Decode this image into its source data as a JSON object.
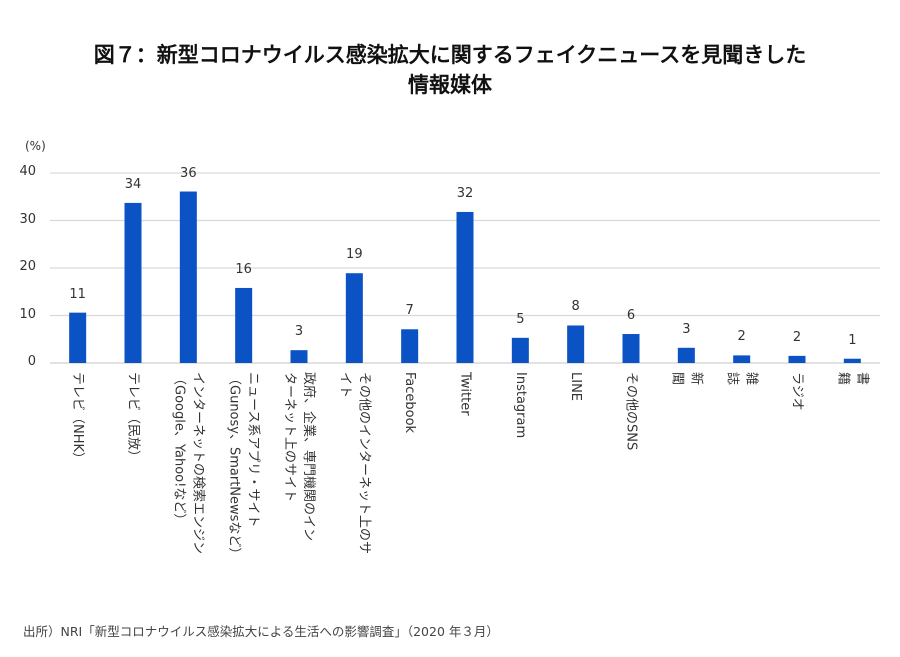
{
  "title": {
    "line1": "図７：新型コロナウイルス感染拡大に関するフェイクニュースを見聞きした",
    "line2": "情報媒体"
  },
  "source": "出所）NRI「新型コロナウイルス感染拡大による生活への影響調査」（2020 年３月）",
  "colors": {
    "bar": "#0b52c5",
    "grid": "#d9d9d9",
    "axis": "#d0d0d0"
  },
  "chart_data": {
    "type": "bar",
    "title": "図７：新型コロナウイルス感染拡大に関するフェイクニュースを見聞きした情報媒体",
    "xlabel": "",
    "ylabel": "(%)",
    "ylim": [
      0,
      40
    ],
    "yticks": [
      "0",
      "10",
      "20",
      "30",
      "40"
    ],
    "grid": true,
    "categories": [
      "テレビ（NHK）",
      "テレビ（民放）",
      "インターネットの検索エンジン\n（Google、Yahoo!など）",
      "ニュース系アプリ・サイト\n（Gunosy、SmartNewsなど）",
      "政府、企業、専門機関のイン\nターネット上のサイト",
      "その他のインターネット上のサ\nイト",
      "Facebook",
      "Twitter",
      "Instagram",
      "LINE",
      "その他のSNS",
      "新\n聞",
      "雑\n誌",
      "ラジオ",
      "書\n籍"
    ],
    "values": [
      10.6,
      33.7,
      36.1,
      15.8,
      2.7,
      18.9,
      7.1,
      31.8,
      5.3,
      7.9,
      6.1,
      3.2,
      1.6,
      1.5,
      0.9
    ],
    "data_labels": [
      "11",
      "34",
      "36",
      "16",
      "3",
      "19",
      "7",
      "32",
      "5",
      "8",
      "6",
      "3",
      "2",
      "2",
      "1"
    ]
  }
}
